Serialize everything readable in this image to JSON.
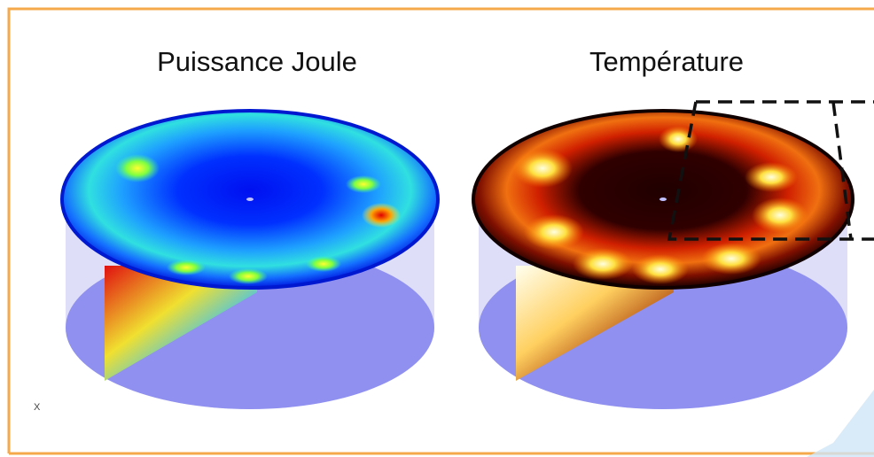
{
  "panels": [
    {
      "title": "Puissance Joule"
    },
    {
      "title": "Température"
    }
  ],
  "axis_label": "X"
}
